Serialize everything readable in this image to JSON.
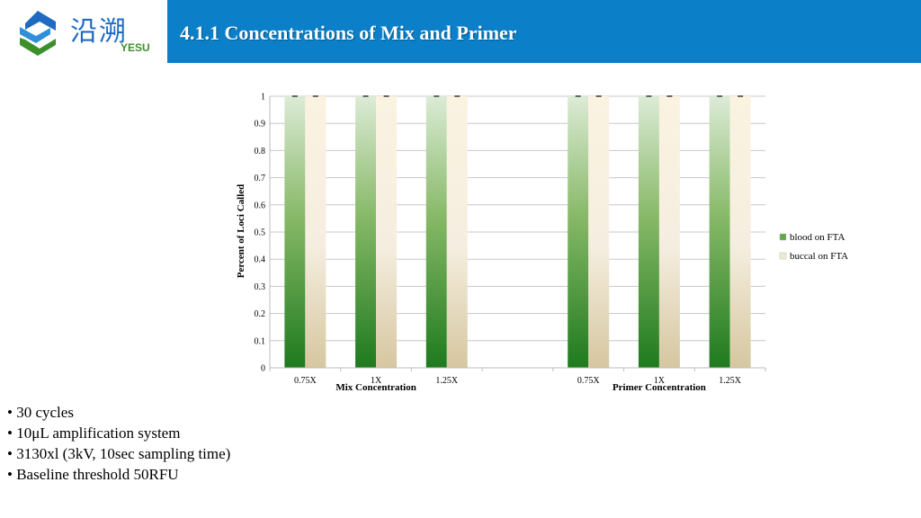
{
  "header": {
    "title": "4.1.1 Concentrations of Mix and Primer",
    "logo_cn": "沿溯",
    "logo_en": "YESU"
  },
  "bullets": [
    "30 cycles",
    "10μL amplification system",
    "3130xl (3kV, 10sec sampling time)",
    "Baseline threshold 50RFU"
  ],
  "colors": {
    "header_bg": "#0b80c8",
    "blood_dark": "#1e7a1e",
    "blood_light": "#dcebd6",
    "buccal_dark": "#d6c7a0",
    "buccal_light": "#fbf5e6"
  },
  "chart_data": {
    "type": "bar",
    "ylabel": "Percent of Loci Called",
    "ylim": [
      0,
      1
    ],
    "yticks": [
      "0",
      "0.1",
      "0.2",
      "0.3",
      "0.4",
      "0.5",
      "0.6",
      "0.7",
      "0.8",
      "0.9",
      "1"
    ],
    "grid": true,
    "legend_position": "right",
    "categories": [
      "0.75X",
      "1X",
      "1.25X",
      "",
      "0.75X",
      "1X",
      "1.25X"
    ],
    "groups": [
      {
        "label": "Mix Concentration",
        "categories": [
          0,
          1,
          2
        ]
      },
      {
        "label": "Primer Concentration",
        "categories": [
          4,
          5,
          6
        ]
      }
    ],
    "series": [
      {
        "name": "blood on FTA",
        "values": [
          1,
          1,
          1,
          null,
          1,
          1,
          1
        ]
      },
      {
        "name": "buccal on FTA",
        "values": [
          1,
          1,
          1,
          null,
          1,
          1,
          1
        ]
      }
    ]
  }
}
